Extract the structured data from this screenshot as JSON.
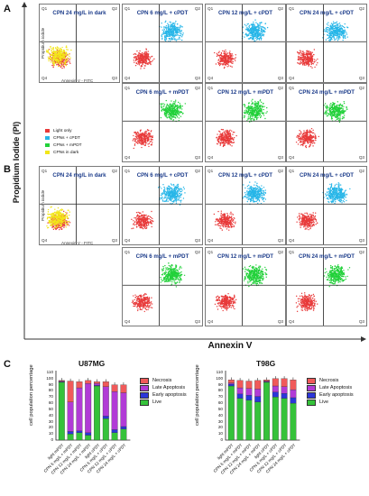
{
  "figure": {
    "panel_labels": {
      "a": "A",
      "b": "B",
      "c": "C"
    },
    "y_axis_title": "Propidium Iodide (PI)",
    "x_axis_title": "Annexin V",
    "small_x_label": "Annexin V - FITC",
    "small_y_label": "Propidium iodide",
    "quadrants": [
      "Q1",
      "Q2",
      "Q3",
      "Q4"
    ],
    "colors": {
      "light_only": "#e83a3a",
      "cpdt": "#27b6e8",
      "mpdt": "#22d13a",
      "dark": "#f2e619",
      "necrosis": "#f05a5a",
      "late_apoptosis": "#b13bd6",
      "early_apoptosis": "#2b36d9",
      "live": "#35c23a"
    }
  },
  "flow_panels": [
    {
      "title": "CPN 24 mg/L in dark",
      "cloud": "dark"
    },
    {
      "title": "CPN 6 mg/L + cPDT",
      "cloud": "cpdt"
    },
    {
      "title": "CPN 12 mg/L + cPDT",
      "cloud": "cpdt"
    },
    {
      "title": "CPN 24 mg/L + cPDT",
      "cloud": "cpdt"
    },
    {
      "title": "CPN 6 mg/L + mPDT",
      "cloud": "mpdt"
    },
    {
      "title": "CPN 12 mg/L + mPDT",
      "cloud": "mpdt"
    },
    {
      "title": "CPN 24 mg/L + mPDT",
      "cloud": "mpdt"
    },
    {
      "title": "CPN 24 mg/L in dark",
      "cloud": "dark"
    },
    {
      "title": "CPN 6 mg/L + cPDT",
      "cloud": "cpdt"
    },
    {
      "title": "CPN 12 mg/L + cPDT",
      "cloud": "cpdt"
    },
    {
      "title": "CPN 24 mg/L + cPDT",
      "cloud": "cpdt"
    },
    {
      "title": "CPN 6 mg/L + mPDT",
      "cloud": "mpdt"
    },
    {
      "title": "CPN 12 mg/L + mPDT",
      "cloud": "mpdt"
    },
    {
      "title": "CPN 24 mg/L + mPDT",
      "cloud": "mpdt"
    }
  ],
  "flow_legend": [
    {
      "label": "Light only",
      "color": "#e83a3a"
    },
    {
      "label": "CPNs + cPDT",
      "color": "#27b6e8"
    },
    {
      "label": "CPNs + mPDT",
      "color": "#22d13a"
    },
    {
      "label": "CPNs in dark",
      "color": "#f2e619"
    }
  ],
  "chart_data": [
    {
      "type": "bar",
      "stacked": true,
      "title": "U87MG",
      "ylabel": "cell population percentage",
      "ylim": [
        0,
        110
      ],
      "yticks": [
        0,
        10,
        20,
        30,
        40,
        50,
        60,
        70,
        80,
        90,
        100,
        110
      ],
      "categories": [
        "light mPDT",
        "CPN 6 mg/L + mPDT",
        "CPN 12 mg/L + mPDT",
        "CPN 24 mg/L + mPDT",
        "light cPDT",
        "CPN 6 mg/L + cPDT",
        "CPN 12 mg/L + cPDT",
        "CPN 24 mg/L + cPDT"
      ],
      "series": [
        {
          "name": "Live",
          "values": [
            94,
            10,
            12,
            8,
            88,
            35,
            12,
            18
          ]
        },
        {
          "name": "Early apoptosis",
          "values": [
            1,
            4,
            3,
            4,
            1,
            4,
            5,
            4
          ]
        },
        {
          "name": "Late Apoptosis",
          "values": [
            1,
            48,
            70,
            80,
            3,
            48,
            62,
            55
          ]
        },
        {
          "name": "Necrosis",
          "values": [
            1,
            34,
            10,
            5,
            3,
            8,
            11,
            13
          ]
        }
      ],
      "legend_position": "right"
    },
    {
      "type": "bar",
      "stacked": true,
      "title": "T98G",
      "ylabel": "cell population percentage",
      "ylim": [
        0,
        110
      ],
      "yticks": [
        0,
        10,
        20,
        30,
        40,
        50,
        60,
        70,
        80,
        90,
        100,
        110
      ],
      "categories": [
        "light mPDT",
        "CPN 6 mg/L + mPDT",
        "CPN 12 mg/L + mPDT",
        "CPN 24 mg/L + mPDT",
        "light cPDT",
        "CPN 6 mg/L + cPDT",
        "CPN 12 mg/L + cPDT",
        "CPN 24 mg/L + cPDT"
      ],
      "series": [
        {
          "name": "Live",
          "values": [
            88,
            68,
            65,
            62,
            94,
            70,
            68,
            60
          ]
        },
        {
          "name": "Early apoptosis",
          "values": [
            3,
            7,
            8,
            9,
            1,
            8,
            8,
            9
          ]
        },
        {
          "name": "Late Apoptosis",
          "values": [
            2,
            10,
            11,
            12,
            1,
            10,
            11,
            13
          ]
        },
        {
          "name": "Necrosis",
          "values": [
            5,
            12,
            12,
            14,
            2,
            12,
            13,
            16
          ]
        }
      ],
      "legend_position": "right"
    }
  ],
  "bar_legend": [
    {
      "label": "Necrosis",
      "color": "#f05a5a"
    },
    {
      "label": "Late Apoptosis",
      "color": "#b13bd6"
    },
    {
      "label": "Early apoptosis",
      "color": "#2b36d9"
    },
    {
      "label": "Live",
      "color": "#35c23a"
    }
  ]
}
